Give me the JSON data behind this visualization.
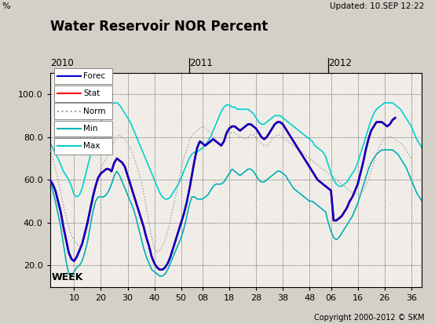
{
  "title": "Water Reservoir NOR Percent",
  "updated_text": "Updated: 10.SEP 12:22",
  "copyright_text": "Copyright 2000-2012 © SKM",
  "xlabel": "WEEK",
  "ylabel": "%",
  "ylim": [
    10,
    110
  ],
  "yticks": [
    20.0,
    40.0,
    60.0,
    80.0,
    100.0
  ],
  "year_labels": [
    {
      "text": "2010",
      "x": 1
    },
    {
      "text": "2011",
      "x": 53
    },
    {
      "text": "2012",
      "x": 105
    }
  ],
  "year_line_xs": [
    53,
    105
  ],
  "xtick_labels": [
    "10",
    "20",
    "30",
    "40",
    "50",
    "08",
    "18",
    "28",
    "38",
    "48",
    "06",
    "16",
    "26",
    "36"
  ],
  "xtick_positions": [
    10,
    20,
    30,
    40,
    50,
    58,
    68,
    78,
    88,
    98,
    106,
    116,
    126,
    136
  ],
  "background_color": "#d4d0c8",
  "plot_bg_color": "#f0ede8",
  "colors": {
    "forec": "#0000cc",
    "stat": "#ff0000",
    "norm": "#a0a0a0",
    "min": "#00b0b0",
    "max": "#00d0d0"
  },
  "legend_items": [
    "Forec",
    "Stat",
    "Norm",
    "Min",
    "Max"
  ],
  "legend_line_styles": [
    "solid",
    "solid",
    "dotted",
    "solid",
    "solid"
  ],
  "weeks_total": 140,
  "forec": [
    60,
    58,
    55,
    50,
    45,
    38,
    32,
    26,
    23,
    22,
    24,
    27,
    30,
    35,
    40,
    46,
    52,
    57,
    61,
    63,
    64,
    65,
    65,
    64,
    68,
    70,
    69,
    68,
    66,
    62,
    58,
    54,
    50,
    46,
    42,
    38,
    33,
    29,
    24,
    21,
    19,
    18,
    18,
    19,
    21,
    24,
    28,
    32,
    36,
    40,
    44,
    49,
    55,
    62,
    69,
    75,
    78,
    77,
    76,
    77,
    78,
    79,
    78,
    77,
    76,
    78,
    82,
    84,
    85,
    85,
    84,
    83,
    84,
    85,
    86,
    86,
    85,
    84,
    82,
    80,
    79,
    80,
    82,
    84,
    86,
    87,
    87,
    86,
    84,
    82,
    80,
    78,
    76,
    74,
    72,
    70,
    68,
    66,
    64,
    62,
    60,
    59,
    58,
    57,
    56,
    55,
    41,
    41,
    42,
    43,
    45,
    47,
    50,
    52,
    55,
    58,
    63,
    68,
    74,
    79,
    83,
    85,
    87,
    87,
    87,
    86,
    85,
    86,
    88,
    89,
    null,
    null,
    null,
    null,
    null,
    null,
    null,
    null,
    null,
    null
  ],
  "stat": [
    60,
    58,
    55,
    50,
    45,
    38,
    32,
    26,
    23,
    22,
    24,
    27,
    30,
    35,
    40,
    46,
    52,
    57,
    61,
    63,
    64,
    65,
    65,
    64,
    68,
    70,
    69,
    68,
    66,
    62,
    58,
    54,
    50,
    46,
    42,
    38,
    33,
    29,
    24,
    21,
    19,
    18,
    18,
    19,
    21,
    24,
    28,
    32,
    36,
    40,
    44,
    49,
    55,
    62,
    69,
    75,
    78,
    77,
    76,
    77,
    78,
    79,
    78,
    77,
    76,
    78,
    82,
    84,
    85,
    85,
    84,
    83,
    84,
    85,
    86,
    86,
    85,
    84,
    82,
    80,
    79,
    80,
    82,
    84,
    86,
    87,
    87,
    86,
    84,
    82,
    80,
    78,
    76,
    74,
    72,
    70,
    68,
    66,
    64,
    62,
    60,
    59,
    58,
    57,
    56,
    55,
    41,
    41,
    42,
    43,
    45,
    47,
    50,
    52,
    55,
    58,
    63,
    68,
    74,
    79,
    83,
    85,
    87,
    87,
    87,
    86,
    85,
    86,
    88,
    89,
    null,
    null,
    null,
    null,
    null,
    null,
    null,
    null,
    null,
    null
  ],
  "norm": [
    75,
    70,
    65,
    60,
    54,
    48,
    43,
    38,
    34,
    32,
    30,
    29,
    30,
    33,
    38,
    44,
    50,
    56,
    61,
    65,
    68,
    70,
    72,
    74,
    78,
    80,
    81,
    80,
    79,
    77,
    75,
    72,
    68,
    64,
    60,
    54,
    47,
    40,
    33,
    28,
    26,
    27,
    29,
    32,
    36,
    41,
    47,
    53,
    59,
    65,
    70,
    74,
    78,
    81,
    82,
    83,
    84,
    85,
    84,
    83,
    82,
    80,
    78,
    77,
    77,
    79,
    81,
    82,
    82,
    82,
    81,
    80,
    80,
    79,
    80,
    81,
    81,
    80,
    78,
    77,
    76,
    76,
    77,
    79,
    80,
    81,
    81,
    80,
    79,
    78,
    77,
    76,
    75,
    74,
    73,
    72,
    71,
    70,
    69,
    68,
    67,
    66,
    65,
    64,
    63,
    62,
    61,
    60,
    59,
    58,
    57,
    56,
    55,
    54,
    54,
    53,
    54,
    55,
    57,
    60,
    64,
    68,
    72,
    75,
    78,
    79,
    80,
    80,
    80,
    79,
    78,
    77,
    76,
    74,
    72,
    70,
    null,
    null,
    null,
    null
  ],
  "min_data": [
    60,
    55,
    50,
    44,
    38,
    30,
    22,
    16,
    15,
    17,
    19,
    20,
    22,
    26,
    31,
    38,
    45,
    50,
    52,
    52,
    52,
    53,
    55,
    58,
    62,
    64,
    62,
    59,
    56,
    53,
    50,
    47,
    43,
    38,
    33,
    28,
    24,
    21,
    18,
    17,
    16,
    15,
    15,
    16,
    18,
    21,
    24,
    27,
    30,
    33,
    37,
    42,
    48,
    52,
    52,
    51,
    51,
    51,
    52,
    53,
    55,
    57,
    58,
    58,
    58,
    59,
    61,
    63,
    65,
    64,
    63,
    62,
    63,
    64,
    65,
    65,
    64,
    62,
    60,
    59,
    59,
    60,
    61,
    62,
    63,
    64,
    64,
    63,
    62,
    60,
    58,
    56,
    55,
    54,
    53,
    52,
    51,
    50,
    50,
    49,
    48,
    47,
    46,
    45,
    40,
    36,
    33,
    32,
    33,
    35,
    37,
    39,
    41,
    43,
    46,
    49,
    53,
    57,
    61,
    65,
    68,
    70,
    72,
    73,
    74,
    74,
    74,
    74,
    74,
    73,
    72,
    70,
    68,
    66,
    63,
    60,
    57,
    54,
    52,
    50
  ],
  "max_data": [
    77,
    75,
    72,
    70,
    67,
    64,
    62,
    60,
    57,
    53,
    52,
    53,
    56,
    61,
    66,
    71,
    76,
    80,
    84,
    87,
    90,
    92,
    94,
    95,
    96,
    96,
    95,
    93,
    91,
    89,
    87,
    84,
    81,
    78,
    75,
    72,
    69,
    66,
    63,
    60,
    57,
    54,
    52,
    51,
    51,
    52,
    54,
    56,
    58,
    61,
    64,
    67,
    70,
    72,
    73,
    73,
    74,
    75,
    76,
    78,
    80,
    83,
    86,
    89,
    92,
    94,
    95,
    95,
    94,
    94,
    93,
    93,
    93,
    93,
    93,
    92,
    91,
    89,
    87,
    86,
    86,
    87,
    88,
    89,
    90,
    90,
    90,
    89,
    88,
    87,
    86,
    85,
    84,
    83,
    82,
    81,
    80,
    79,
    78,
    76,
    75,
    74,
    73,
    71,
    67,
    63,
    60,
    58,
    57,
    57,
    58,
    59,
    61,
    63,
    65,
    68,
    72,
    76,
    80,
    84,
    88,
    91,
    93,
    94,
    95,
    96,
    96,
    96,
    96,
    95,
    94,
    93,
    91,
    89,
    87,
    85,
    82,
    79,
    77,
    75
  ]
}
